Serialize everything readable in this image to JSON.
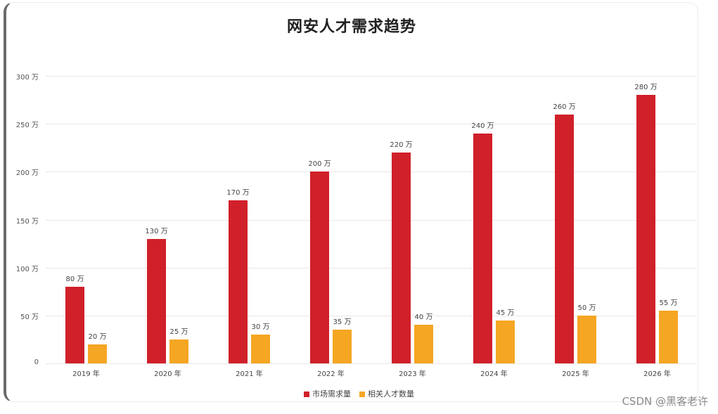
{
  "title": "网安人才需求趋势",
  "watermark": "CSDN @黑客老许",
  "colors": {
    "demand": "#d0202a",
    "talent": "#f5a623"
  },
  "legend": [
    {
      "label": "市场需求量",
      "color": "#d0202a"
    },
    {
      "label": "相关人才数量",
      "color": "#f5a623"
    }
  ],
  "y_ticks": [
    "0",
    "50 万",
    "100 万",
    "150 万",
    "200 万",
    "250 万",
    "300 万"
  ],
  "chart_data": {
    "type": "bar",
    "title": "网安人才需求趋势",
    "xlabel": "",
    "ylabel": "",
    "unit": "万",
    "ylim": [
      0,
      300
    ],
    "grid": true,
    "legend_position": "bottom",
    "categories": [
      "2019 年",
      "2020 年",
      "2021 年",
      "2022 年",
      "2023 年",
      "2024 年",
      "2025 年",
      "2026 年"
    ],
    "series": [
      {
        "name": "市场需求量",
        "values": [
          80,
          130,
          170,
          200,
          220,
          240,
          260,
          280
        ],
        "labels": [
          "80 万",
          "130 万",
          "170 万",
          "200 万",
          "220 万",
          "240 万",
          "260 万",
          "280 万"
        ]
      },
      {
        "name": "相关人才数量",
        "values": [
          20,
          25,
          30,
          35,
          40,
          45,
          50,
          55
        ],
        "labels": [
          "20 万",
          "25 万",
          "30 万",
          "35 万",
          "40 万",
          "45 万",
          "50 万",
          "55 万"
        ]
      }
    ]
  }
}
